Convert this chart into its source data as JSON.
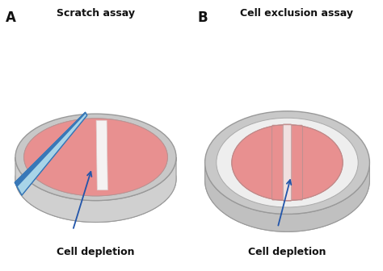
{
  "title_A": "Scratch assay",
  "title_B": "Cell exclusion assay",
  "label_A": "Cell depletion",
  "label_B": "Cell depletion",
  "panel_A": "A",
  "panel_B": "B",
  "bg_color": "#ffffff",
  "dish_rim_color": "#c8c8c8",
  "dish_rim_edge": "#999999",
  "dish_inner_top": "#e8e8e8",
  "dish_side_color": "#d0d0d0",
  "dish_bottom_color": "#b8b8b8",
  "cell_color": "#e89090",
  "scratch_color": "#f5f2f2",
  "pipette_light": "#a8d4e8",
  "pipette_dark": "#3878b8",
  "pipette_mid": "#5ba0d0",
  "arrow_color": "#2255aa",
  "text_color": "#111111",
  "insert_fill": "#f0e0e0",
  "insert_edge": "#c8a8a8"
}
